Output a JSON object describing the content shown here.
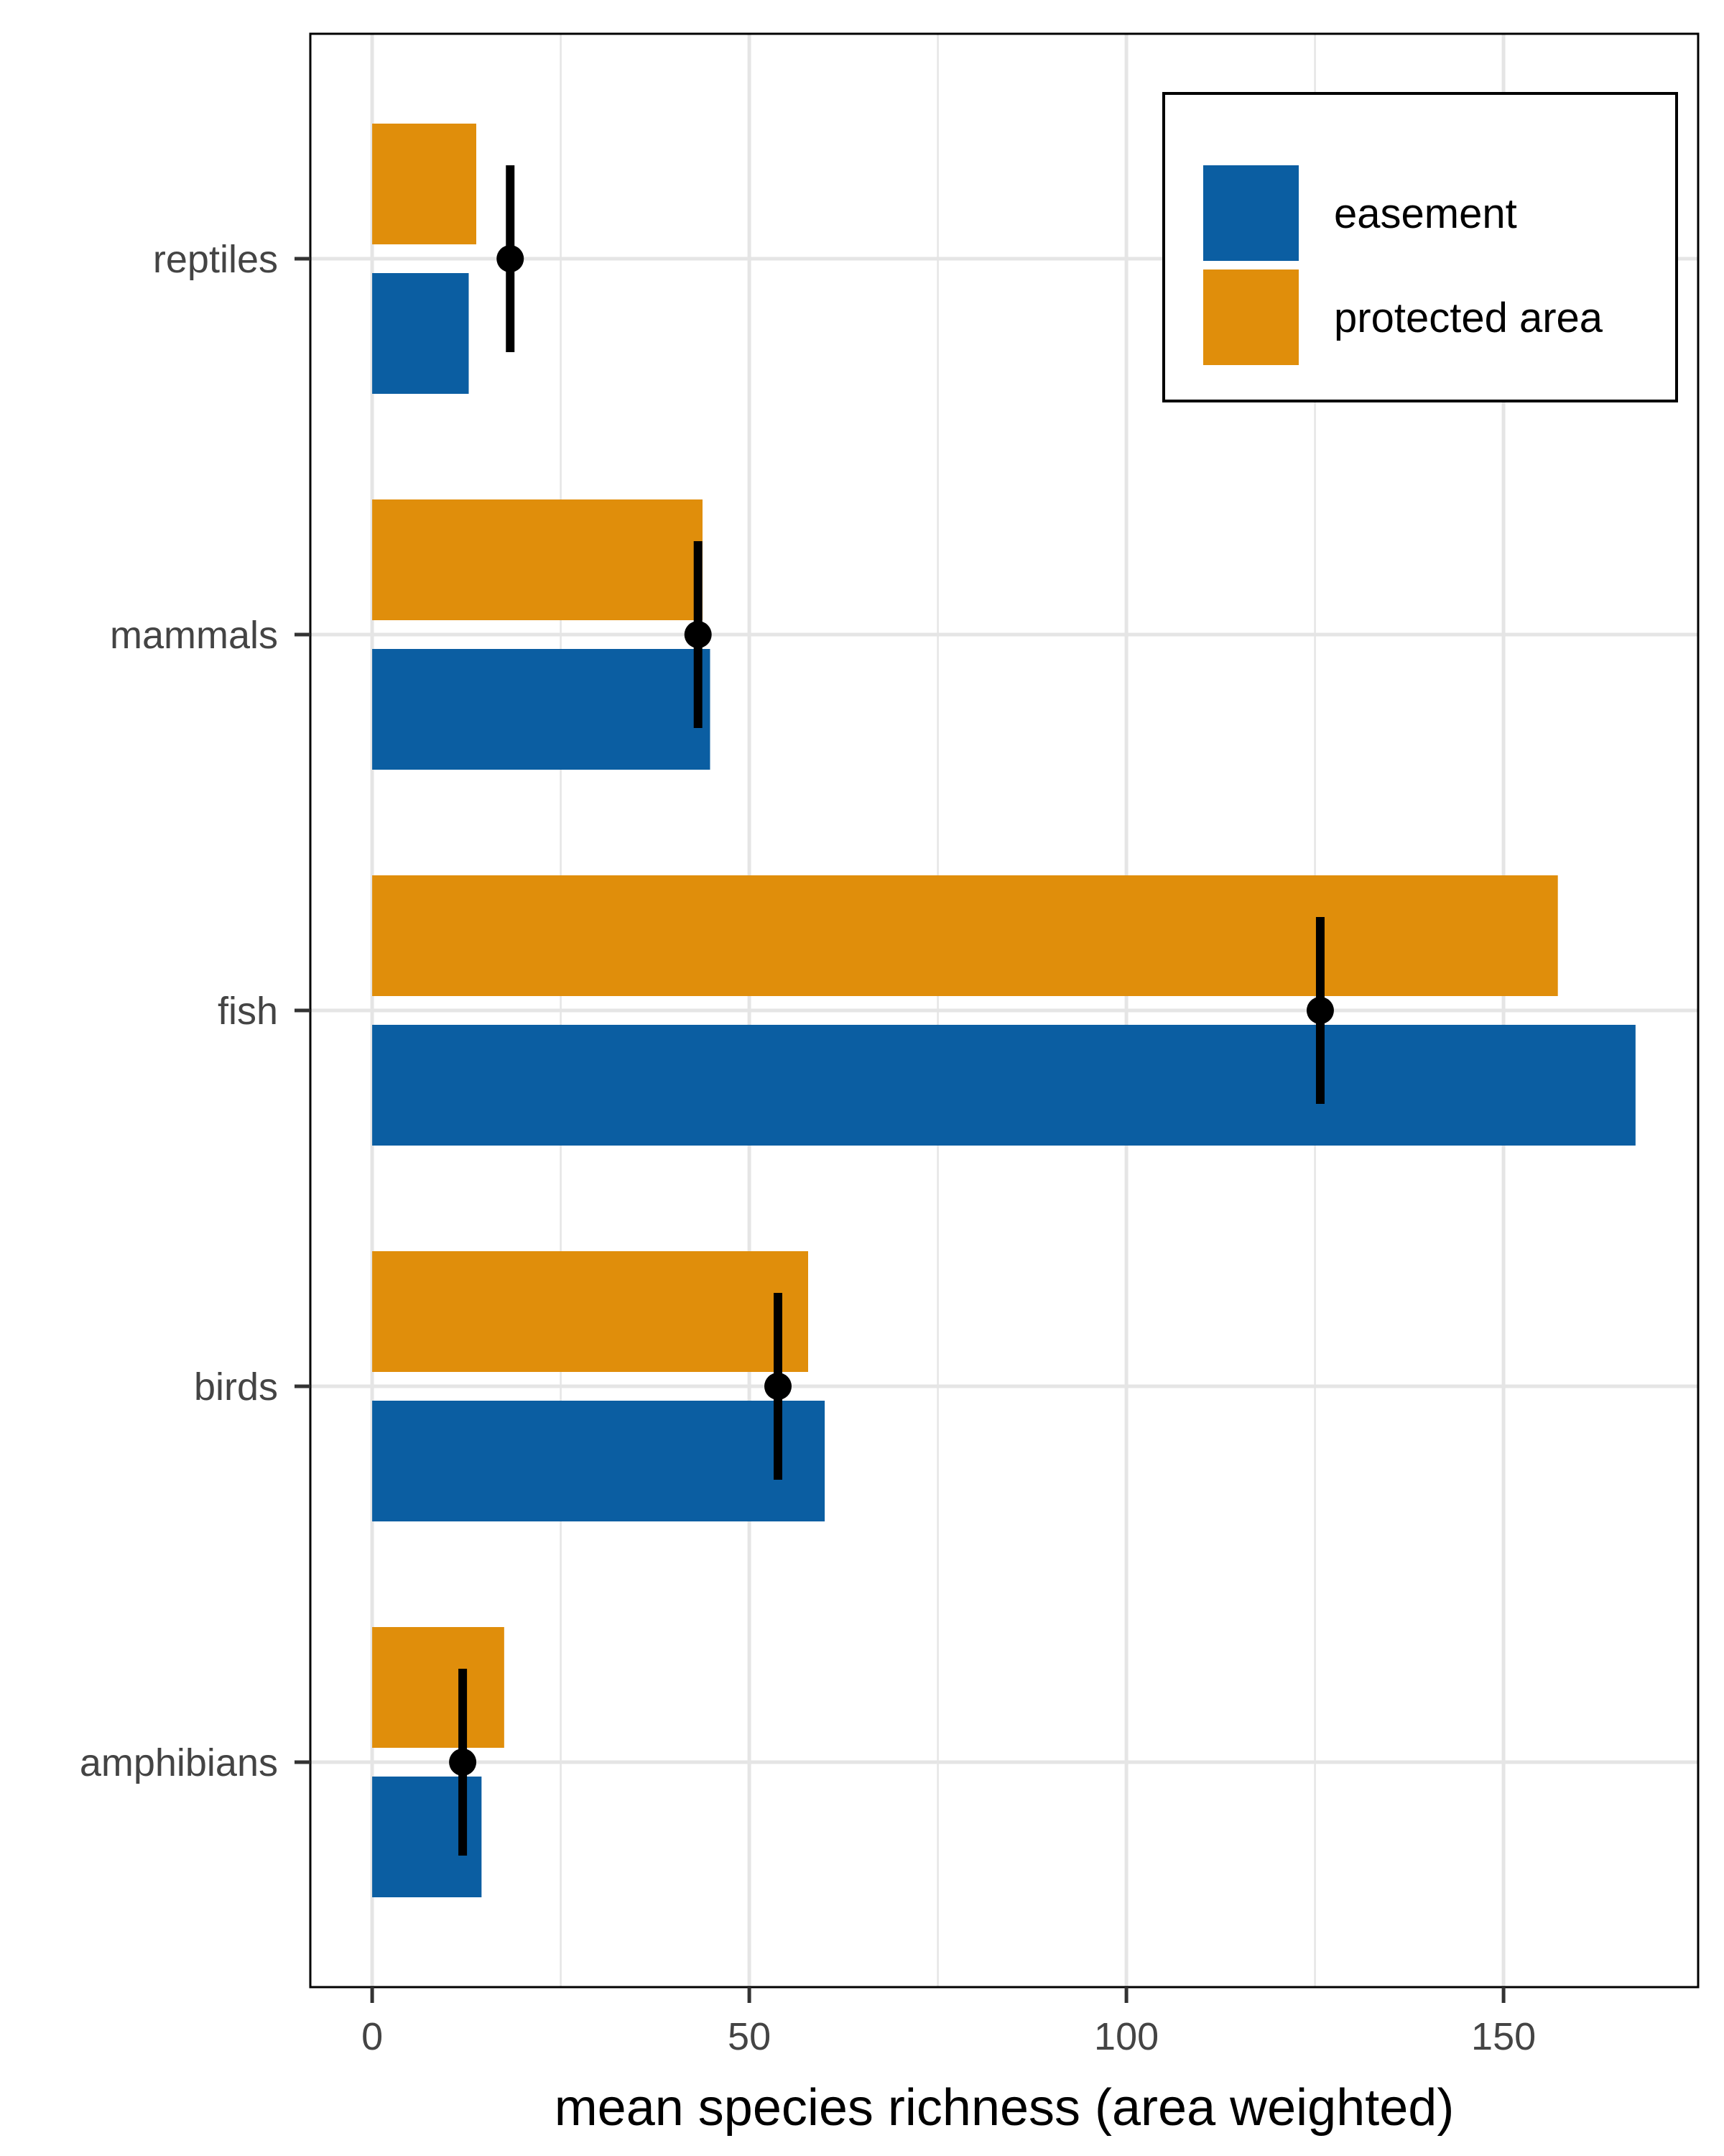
{
  "chart_data": {
    "type": "bar",
    "orientation": "horizontal",
    "categories": [
      "amphibians",
      "birds",
      "fish",
      "mammals",
      "reptiles"
    ],
    "series": [
      {
        "name": "easement",
        "values": [
          14.5,
          60,
          167.5,
          44.8,
          12.8
        ],
        "color": "#0B5EA2"
      },
      {
        "name": "protected area",
        "values": [
          17.5,
          57.8,
          157.2,
          43.8,
          13.8
        ],
        "color": "#E08E0B"
      }
    ],
    "points": {
      "values": [
        12,
        53.8,
        125.7,
        43.2,
        18.3
      ],
      "errors": [
        [
          11.8,
          12.3
        ],
        [
          53.5,
          54.0
        ],
        [
          125.5,
          125.9
        ],
        [
          43.0,
          43.5
        ],
        [
          18.1,
          18.5
        ]
      ],
      "color": "#000000"
    },
    "xlabel": "mean species richness (area weighted)",
    "ylabel": "",
    "xlim": [
      -8.2,
      175.8
    ],
    "xticks": [
      0,
      50,
      100,
      150
    ],
    "xtick_labels": [
      "0",
      "50",
      "100",
      "150"
    ],
    "grid": true,
    "legend": {
      "position": "top-right"
    }
  }
}
